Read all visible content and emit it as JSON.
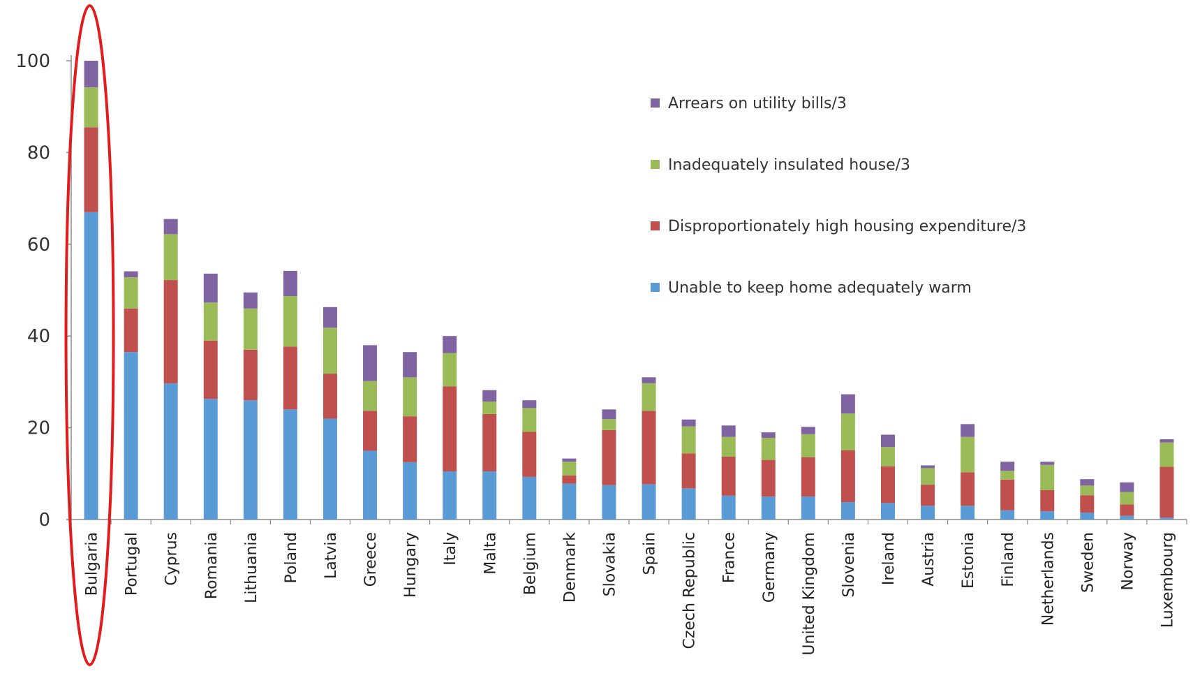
{
  "chart_data": {
    "type": "bar",
    "stacked": true,
    "categories": [
      "Bulgaria",
      "Portugal",
      "Cyprus",
      "Romania",
      "Lithuania",
      "Poland",
      "Latvia",
      "Greece",
      "Hungary",
      "Italy",
      "Malta",
      "Belgium",
      "Denmark",
      "Slovakia",
      "Spain",
      "Czech Republic",
      "France",
      "Germany",
      "United Kingdom",
      "Slovenia",
      "Ireland",
      "Austria",
      "Estonia",
      "Finland",
      "Netherlands",
      "Sweden",
      "Norway",
      "Luxembourg"
    ],
    "series": [
      {
        "name": "Unable to keep home adequately warm",
        "color": "#5b9bd5",
        "values": [
          67,
          36.5,
          29.7,
          26.3,
          26,
          24,
          22,
          15,
          12.5,
          10.5,
          10.5,
          9.3,
          7.8,
          7.5,
          7.7,
          6.8,
          5.2,
          5,
          5,
          3.8,
          3.6,
          3,
          3,
          2,
          1.8,
          1.5,
          0.8,
          0.4
        ]
      },
      {
        "name": "Disproportionately high housing expenditure/3",
        "color": "#c0504d",
        "values": [
          18.5,
          9.5,
          22.5,
          12.7,
          11,
          13.7,
          9.8,
          8.7,
          10,
          18.5,
          12.5,
          9.8,
          1.8,
          12,
          16,
          7.6,
          8.5,
          8,
          8.6,
          11.3,
          8,
          4.6,
          7.3,
          6.7,
          4.6,
          3.8,
          2.5,
          11.1
        ]
      },
      {
        "name": "Inadequately insulated house/3",
        "color": "#9bbb59",
        "values": [
          8.7,
          6.8,
          10,
          8.3,
          9,
          11,
          10,
          6.5,
          8.5,
          7.3,
          2.7,
          5.2,
          3,
          2.4,
          6,
          5.9,
          4.3,
          4.8,
          5,
          8,
          4.2,
          3.6,
          7.7,
          1.9,
          5.5,
          2.1,
          2.7,
          5.3
        ]
      },
      {
        "name": "Arrears on utility bills/3",
        "color": "#8064a2",
        "values": [
          5.8,
          1.3,
          3.3,
          6.3,
          3.5,
          5.5,
          4.5,
          7.8,
          5.5,
          3.7,
          2.5,
          1.7,
          0.7,
          2.1,
          1.3,
          1.5,
          2.5,
          1.2,
          1.6,
          4.2,
          2.7,
          0.6,
          2.8,
          2,
          0.7,
          1.4,
          2.1,
          0.7
        ]
      }
    ],
    "yticks": [
      0,
      20,
      40,
      60,
      80,
      100
    ],
    "ylim": [
      0,
      100
    ],
    "legend": "top-right, reversed order",
    "highlight": {
      "category": "Bulgaria",
      "shape": "ellipse",
      "color": "#e31b1b"
    }
  }
}
